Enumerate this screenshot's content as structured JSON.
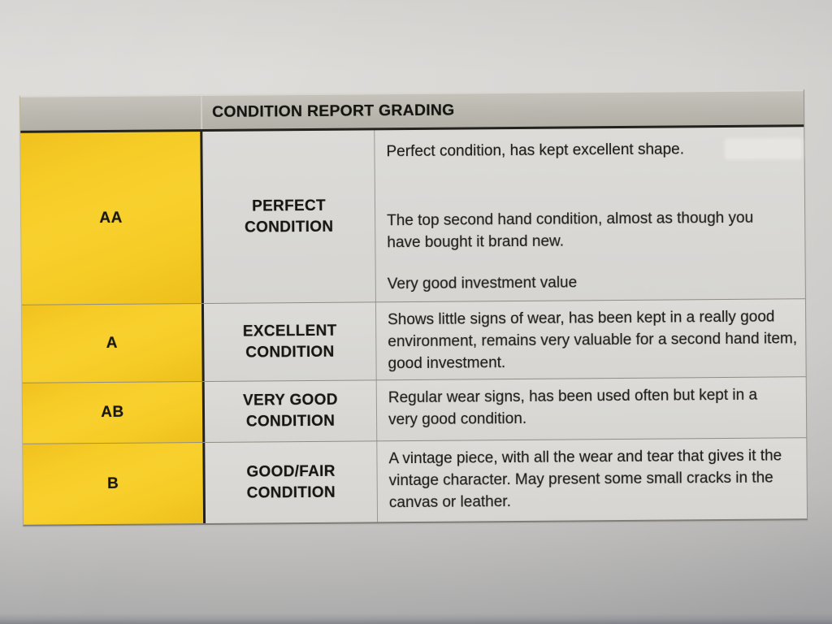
{
  "table": {
    "title": "CONDITION REPORT GRADING",
    "rows": [
      {
        "grade": "AA",
        "label": "PERFECT\nCONDITION",
        "paragraphs": [
          "Perfect condition, has kept excellent shape.",
          "The top second hand condition, almost as though you have bought it brand new.",
          "Very good investment value"
        ]
      },
      {
        "grade": "A",
        "label": "EXCELLENT\nCONDITION",
        "paragraphs": [
          "Shows little signs of wear, has been kept in a really good environment, remains very valuable for a second hand item, good investment."
        ]
      },
      {
        "grade": "AB",
        "label": "VERY GOOD\nCONDITION",
        "paragraphs": [
          "Regular wear signs, has been used often but kept in a very good condition."
        ]
      },
      {
        "grade": "B",
        "label": "GOOD/FAIR\nCONDITION",
        "paragraphs": [
          "A vintage piece, with all the wear and tear that gives it the vintage character. May present some small cracks in the canvas or leather."
        ]
      }
    ]
  },
  "colors": {
    "grade_column_yellow": "#f6cb26",
    "header_bar_gray": "#b9b7ae",
    "paper_gray": "#d8d7d4",
    "text_black": "#1a1a1a"
  }
}
